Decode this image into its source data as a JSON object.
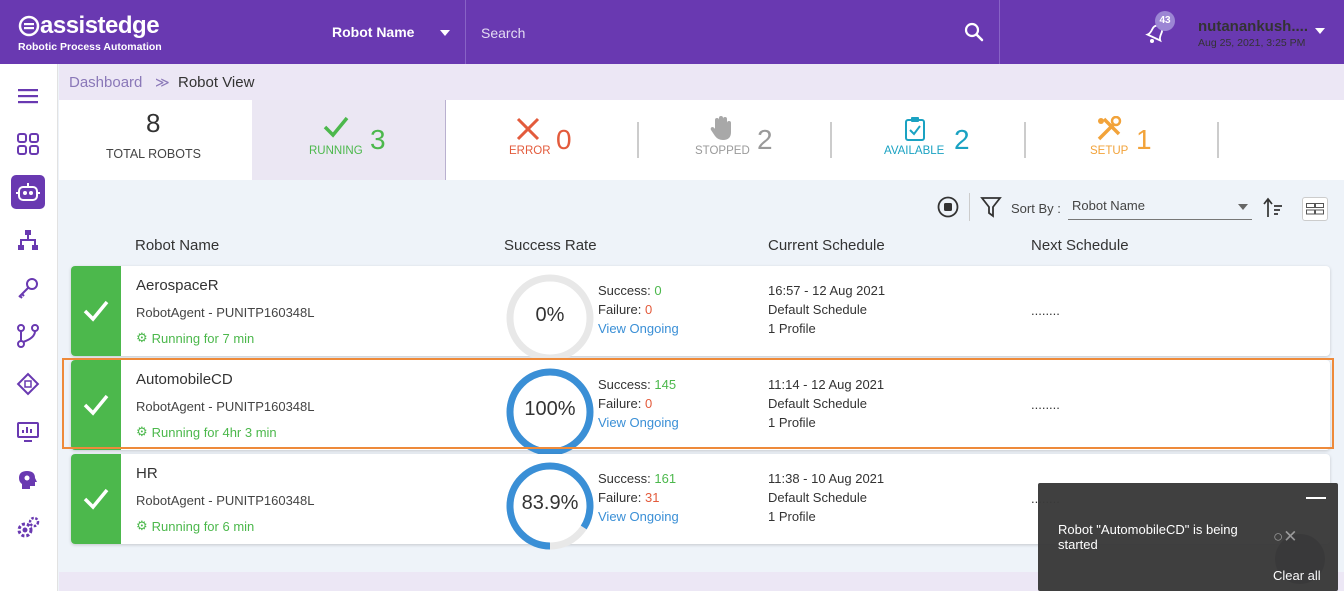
{
  "header": {
    "brand": "assistedge",
    "brand_sub": "Robotic Process Automation",
    "robot_select": "Robot Name",
    "search_placeholder": "Search",
    "notification_count": "43",
    "user_name": "nutanankush....",
    "user_date": "Aug 25, 2021, 3:25 PM"
  },
  "sidebar": {
    "icons": [
      "menu-icon",
      "dashboard-icon",
      "robot-icon",
      "hierarchy-icon",
      "key-icon",
      "workflow-icon",
      "chip-icon",
      "monitor-icon",
      "head-gear-icon",
      "settings-icon"
    ],
    "active": "robot-icon"
  },
  "breadcrumb": {
    "root": "Dashboard",
    "separator": "≫",
    "current": "Robot View"
  },
  "stats": {
    "total": {
      "value": "8",
      "label": "TOTAL ROBOTS"
    },
    "running": {
      "value": "3",
      "label": "RUNNING"
    },
    "error": {
      "value": "0",
      "label": "ERROR"
    },
    "stopped": {
      "value": "2",
      "label": "STOPPED"
    },
    "available": {
      "value": "2",
      "label": "AVAILABLE"
    },
    "setup": {
      "value": "1",
      "label": "SETUP"
    }
  },
  "colors": {
    "purple": "#6939b1",
    "green": "#4cb84c",
    "red": "#e35b3c",
    "grey": "#9a9a9a",
    "teal": "#1aa2c2",
    "orange": "#f2a33a",
    "blue": "#3a8fd6",
    "selection": "#ee8a3a"
  },
  "toolbar": {
    "sort_label": "Sort By :",
    "sort_value": "Robot Name"
  },
  "columns": {
    "name": "Robot Name",
    "success": "Success Rate",
    "current": "Current Schedule",
    "next": "Next Schedule"
  },
  "robots": [
    {
      "name": "AerospaceR",
      "agent": "RobotAgent - PUNITP160348L",
      "running": "Running for 7 min",
      "rate_text": "0%",
      "rate": 0,
      "success_label": "Success:",
      "success": "0",
      "failure_label": "Failure:",
      "failure": "0",
      "ongoing": "View Ongoing",
      "cur_time": "16:57 - 12 Aug 2021",
      "cur_name": "Default Schedule",
      "profile": "1 Profile",
      "next": "........"
    },
    {
      "name": "AutomobileCD",
      "agent": "RobotAgent - PUNITP160348L",
      "running": "Running for 4hr 3 min",
      "rate_text": "100%",
      "rate": 100,
      "success_label": "Success:",
      "success": "145",
      "failure_label": "Failure:",
      "failure": "0",
      "ongoing": "View Ongoing",
      "cur_time": "11:14 - 12 Aug 2021",
      "cur_name": "Default Schedule",
      "profile": "1 Profile",
      "next": "........"
    },
    {
      "name": "HR",
      "agent": "RobotAgent - PUNITP160348L",
      "running": "Running for 6 min",
      "rate_text": "83.9%",
      "rate": 83.9,
      "success_label": "Success:",
      "success": "161",
      "failure_label": "Failure:",
      "failure": "31",
      "ongoing": "View Ongoing",
      "cur_time": "11:38 - 10 Aug 2021",
      "cur_name": "Default Schedule",
      "profile": "1 Profile",
      "next": "........"
    }
  ],
  "toast": {
    "message": "Robot \"AutomobileCD\" is being started",
    "clear": "Clear all"
  }
}
